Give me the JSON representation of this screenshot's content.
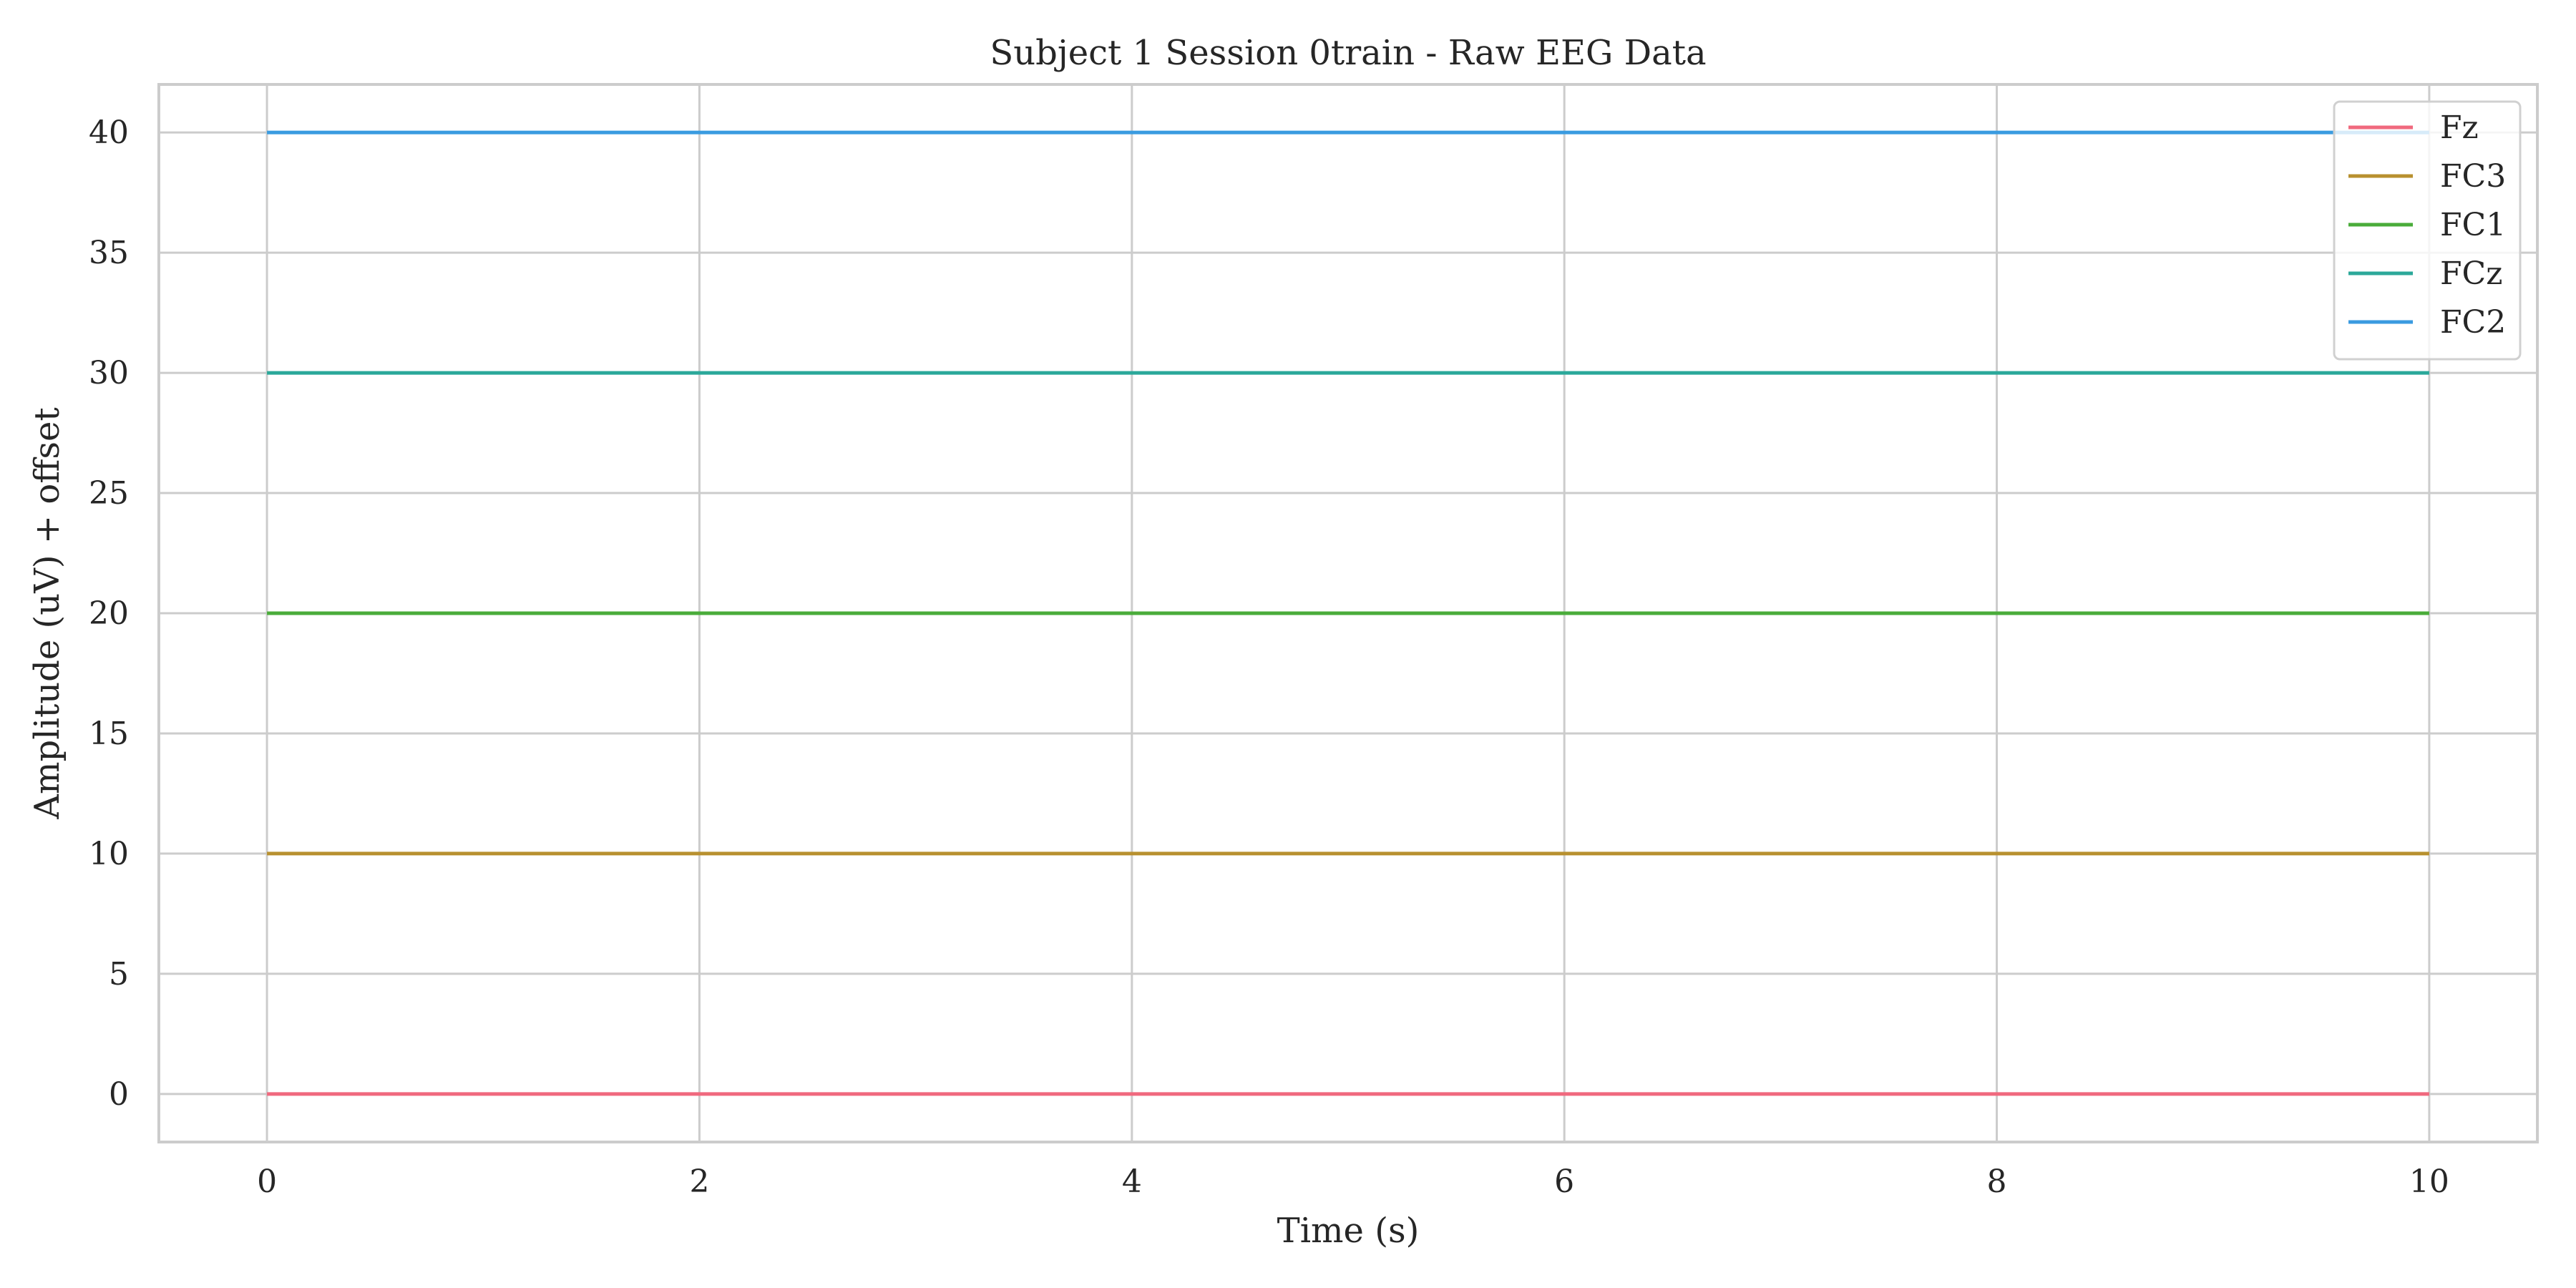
{
  "chart_data": {
    "type": "line",
    "title": "Subject 1 Session 0train - Raw EEG Data",
    "xlabel": "Time (s)",
    "ylabel": "Amplitude (uV) + offset",
    "xlim": [
      -0.5,
      10.5
    ],
    "ylim": [
      -2,
      42
    ],
    "xticks": [
      0,
      2,
      4,
      6,
      8,
      10
    ],
    "yticks": [
      0,
      5,
      10,
      15,
      20,
      25,
      30,
      35,
      40
    ],
    "grid": true,
    "legend_position": "top-right",
    "series": [
      {
        "name": "Fz",
        "color": "#f0697e",
        "x": [
          0,
          10
        ],
        "y": [
          0,
          0
        ]
      },
      {
        "name": "FC3",
        "color": "#b8902f",
        "x": [
          0,
          10
        ],
        "y": [
          10,
          10
        ]
      },
      {
        "name": "FC1",
        "color": "#4aac3a",
        "x": [
          0,
          10
        ],
        "y": [
          20,
          20
        ]
      },
      {
        "name": "FCz",
        "color": "#2ba89a",
        "x": [
          0,
          10
        ],
        "y": [
          30,
          30
        ]
      },
      {
        "name": "FC2",
        "color": "#3a9be0",
        "x": [
          0,
          10
        ],
        "y": [
          40,
          40
        ]
      }
    ]
  }
}
